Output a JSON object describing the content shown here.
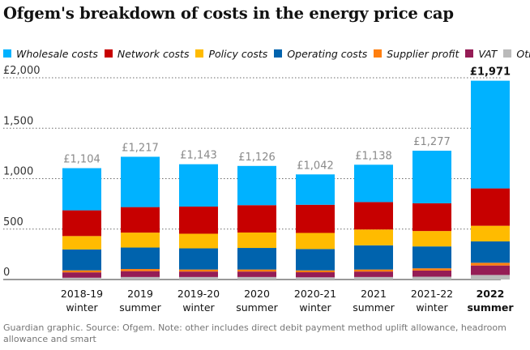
{
  "title": "Ofgem's breakdown of costs in the energy price cap",
  "legend": [
    {
      "name": "Wholesale costs",
      "color": "#00b2ff"
    },
    {
      "name": "Network costs",
      "color": "#c70000"
    },
    {
      "name": "Policy costs",
      "color": "#ffbb00"
    },
    {
      "name": "Operating costs",
      "color": "#0063ad"
    },
    {
      "name": "Supplier profit",
      "color": "#ff7f0f"
    },
    {
      "name": "VAT",
      "color": "#951c55"
    },
    {
      "name": "Other",
      "color": "#bababa"
    }
  ],
  "footer": "Guardian graphic. Source: Ofgem. Note: other includes direct debit payment method uplift allowance, headroom allowance and smart",
  "chart_data": {
    "type": "bar",
    "stacked": true,
    "categories": [
      [
        "2018-19",
        "winter"
      ],
      [
        "2019",
        "summer"
      ],
      [
        "2019-20",
        "winter"
      ],
      [
        "2020",
        "summer"
      ],
      [
        "2020-21",
        "winter"
      ],
      [
        "2021",
        "summer"
      ],
      [
        "2021-22",
        "winter"
      ],
      [
        "2022",
        "summer"
      ]
    ],
    "totals": [
      "£1,104",
      "£1,217",
      "£1,143",
      "£1,126",
      "£1,042",
      "£1,138",
      "£1,277",
      "£1,971"
    ],
    "series": [
      {
        "name": "Other",
        "color": "#bababa",
        "values": [
          18,
          25,
          25,
          25,
          22,
          25,
          28,
          45
        ]
      },
      {
        "name": "VAT",
        "color": "#951c55",
        "values": [
          53,
          58,
          54,
          54,
          50,
          54,
          61,
          94
        ]
      },
      {
        "name": "Supplier profit",
        "color": "#ff7f0f",
        "values": [
          20,
          21,
          20,
          20,
          19,
          20,
          22,
          27
        ]
      },
      {
        "name": "Operating costs",
        "color": "#0063ad",
        "values": [
          207,
          213,
          210,
          214,
          211,
          240,
          217,
          212
        ]
      },
      {
        "name": "Policy costs",
        "color": "#ffbb00",
        "values": [
          133,
          148,
          145,
          153,
          160,
          157,
          153,
          155
        ]
      },
      {
        "name": "Network costs",
        "color": "#c70000",
        "values": [
          255,
          253,
          269,
          271,
          279,
          272,
          275,
          370
        ]
      },
      {
        "name": "Wholesale costs",
        "color": "#00b2ff",
        "values": [
          418,
          499,
          420,
          389,
          301,
          370,
          521,
          1068
        ]
      }
    ],
    "yticks": [
      "£2,000",
      "1,500",
      "1,000",
      "500",
      "0"
    ],
    "ytick_values": [
      2000,
      1500,
      1000,
      500,
      0
    ],
    "ylim": [
      0,
      2000
    ],
    "xlabel": "",
    "ylabel": "",
    "highlight_index": 7,
    "grid": true
  }
}
